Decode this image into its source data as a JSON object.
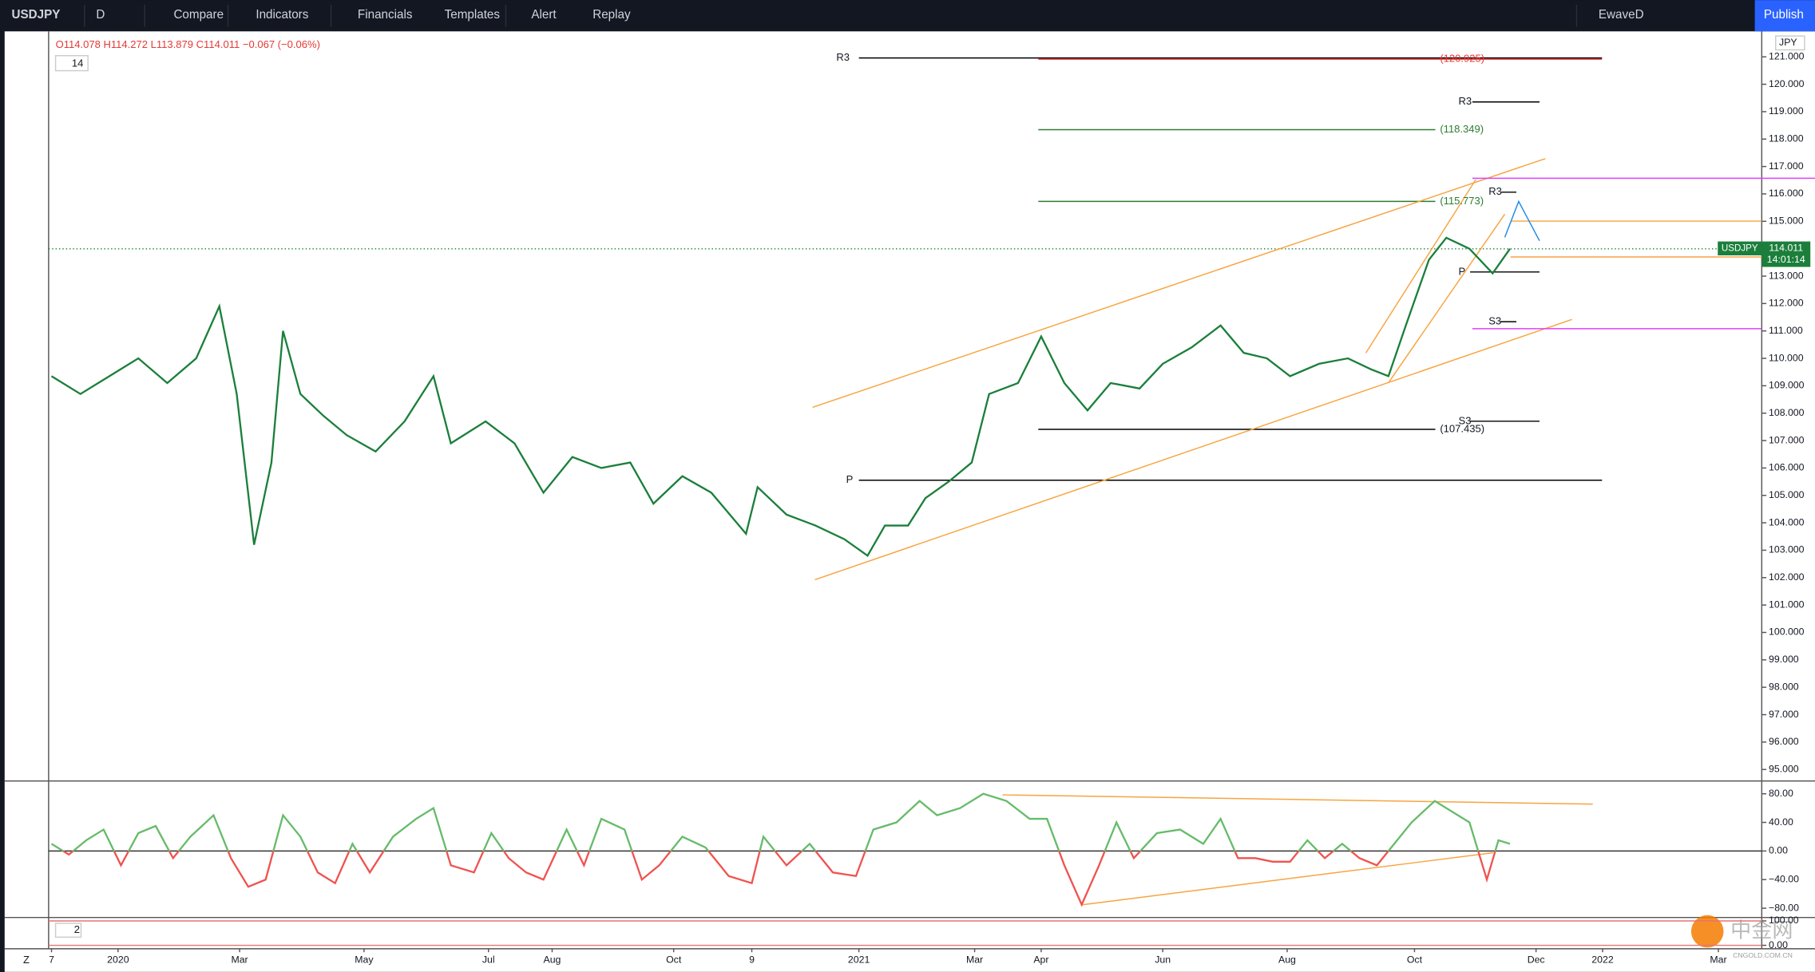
{
  "toolbar": {
    "symbol": "USDJPY",
    "interval": "D",
    "items": [
      "Compare",
      "Indicators",
      "Financials",
      "Templates",
      "Alert",
      "Replay"
    ],
    "layout": "EwaveD",
    "publish": "Publish"
  },
  "legend": {
    "ohlc": "O114.078 H114.272 L113.879 C114.011 −0.067 (−0.06%)",
    "indicator": "14",
    "panel_label": "2",
    "corner": "Z"
  },
  "watermark": {
    "logo": "中金网",
    "site": "CNGOLD.COM.CN"
  },
  "chart_data": [
    {
      "type": "line",
      "currency": "JPY",
      "last": 114.011,
      "countdown": "14:01:14",
      "series": [
        {
          "name": "USDJPY",
          "color": "#1b7f3b",
          "x": [
            1,
            11,
            21,
            31,
            41,
            51,
            59,
            65,
            71,
            77,
            81,
            87,
            95,
            103,
            113,
            123,
            133,
            139,
            151,
            161,
            171,
            181,
            191,
            201,
            209,
            219,
            229,
            241,
            245,
            255,
            265,
            275,
            283,
            289,
            297,
            303,
            311,
            319,
            325,
            335,
            343,
            351,
            359,
            367,
            377,
            385,
            395,
            405,
            413,
            421,
            429,
            439,
            449,
            457,
            463,
            469,
            477,
            483,
            491,
            499,
            505
          ],
          "values": [
            109.35,
            108.7,
            109.35,
            110.0,
            109.1,
            110.0,
            111.9,
            108.7,
            103.2,
            106.2,
            111.0,
            108.7,
            107.9,
            107.2,
            106.6,
            107.7,
            109.35,
            106.9,
            107.7,
            106.9,
            105.1,
            106.4,
            106.0,
            106.2,
            104.7,
            105.7,
            105.1,
            103.6,
            105.3,
            104.3,
            103.9,
            103.4,
            102.8,
            103.9,
            103.9,
            104.9,
            105.5,
            106.2,
            108.7,
            109.1,
            110.8,
            109.1,
            108.1,
            109.1,
            108.9,
            109.8,
            110.4,
            111.2,
            110.2,
            110.0,
            109.35,
            109.8,
            110.0,
            109.6,
            109.35,
            111.2,
            113.6,
            114.4,
            114.0,
            113.1,
            114.0
          ]
        }
      ],
      "xlim": [
        0,
        592
      ],
      "xticks": [
        {
          "value": 1,
          "label": "7"
        },
        {
          "value": 24,
          "label": "2020"
        },
        {
          "value": 66,
          "label": "Mar"
        },
        {
          "value": 109,
          "label": "May"
        },
        {
          "value": 152,
          "label": "Jul"
        },
        {
          "value": 174,
          "label": "Aug"
        },
        {
          "value": 216,
          "label": "Oct"
        },
        {
          "value": 243,
          "label": "9"
        },
        {
          "value": 280,
          "label": "2021"
        },
        {
          "value": 320,
          "label": "Mar"
        },
        {
          "value": 343,
          "label": "Apr"
        },
        {
          "value": 385,
          "label": "Jun"
        },
        {
          "value": 428,
          "label": "Aug"
        },
        {
          "value": 472,
          "label": "Oct"
        },
        {
          "value": 514,
          "label": "Dec"
        },
        {
          "value": 537,
          "label": "2022"
        },
        {
          "value": 577,
          "label": "Mar"
        }
      ],
      "ylim": [
        94.58,
        121.93
      ],
      "yticks": [
        {
          "value": 95,
          "label": "95.000"
        },
        {
          "value": 96,
          "label": "96.000"
        },
        {
          "value": 97,
          "label": "97.000"
        },
        {
          "value": 98,
          "label": "98.000"
        },
        {
          "value": 99,
          "label": "99.000"
        },
        {
          "value": 100,
          "label": "100.000"
        },
        {
          "value": 101,
          "label": "101.000"
        },
        {
          "value": 102,
          "label": "102.000"
        },
        {
          "value": 103,
          "label": "103.000"
        },
        {
          "value": 104,
          "label": "104.000"
        },
        {
          "value": 105,
          "label": "105.000"
        },
        {
          "value": 106,
          "label": "106.000"
        },
        {
          "value": 107,
          "label": "107.000"
        },
        {
          "value": 108,
          "label": "108.000"
        },
        {
          "value": 109,
          "label": "109.000"
        },
        {
          "value": 110,
          "label": "110.000"
        },
        {
          "value": 111,
          "label": "111.000"
        },
        {
          "value": 112,
          "label": "112.000"
        },
        {
          "value": 113,
          "label": "113.000"
        },
        {
          "value": 114,
          "label": "114.000"
        },
        {
          "value": 115,
          "label": "115.000"
        },
        {
          "value": 116,
          "label": "116.000"
        },
        {
          "value": 117,
          "label": "117.000"
        },
        {
          "value": 118,
          "label": "118.000"
        },
        {
          "value": 119,
          "label": "119.000"
        },
        {
          "value": 120,
          "label": "120.000"
        },
        {
          "value": 121,
          "label": "121.000"
        }
      ],
      "annotations": [
        "R3",
        "(120.925)",
        "R3",
        "(118.349)",
        "(115.773)",
        "R3",
        "P",
        "P",
        "S3",
        "S3",
        "(107.435)"
      ]
    },
    {
      "type": "line",
      "color_up": "#66bb6a",
      "color_down": "#ef5350",
      "series": [
        {
          "x": [
            1,
            7,
            13,
            19,
            25,
            31,
            37,
            43,
            49,
            57,
            63,
            69,
            75,
            81,
            87,
            93,
            99,
            105,
            111,
            119,
            127,
            133,
            139,
            147,
            153,
            159,
            165,
            171,
            179,
            185,
            191,
            199,
            205,
            211,
            219,
            227,
            235,
            243,
            247,
            255,
            263,
            271,
            279,
            285,
            293,
            301,
            307,
            315,
            323,
            331,
            339,
            345,
            351,
            357,
            363,
            369,
            375,
            383,
            391,
            399,
            405,
            411,
            417,
            423,
            429,
            435,
            441,
            447,
            453,
            459,
            465,
            471,
            479,
            485,
            491,
            497,
            501,
            505
          ],
          "values": [
            10,
            -5,
            15,
            30,
            -20,
            25,
            35,
            -10,
            20,
            50,
            -10,
            -50,
            -40,
            50,
            20,
            -30,
            -45,
            10,
            -30,
            20,
            45,
            60,
            -20,
            -30,
            25,
            -10,
            -30,
            -40,
            30,
            -20,
            45,
            30,
            -40,
            -20,
            20,
            5,
            -35,
            -45,
            20,
            -20,
            10,
            -30,
            -35,
            30,
            40,
            70,
            50,
            60,
            80,
            70,
            45,
            45,
            -20,
            -75,
            -20,
            40,
            -10,
            25,
            30,
            10,
            45,
            -10,
            -10,
            -15,
            -15,
            15,
            -10,
            10,
            -10,
            -20,
            10,
            40,
            70,
            55,
            40,
            -40,
            15,
            10
          ]
        }
      ],
      "xlim": [
        0,
        592
      ],
      "ylim": [
        -93,
        97.9
      ],
      "yticks": [
        {
          "value": 80,
          "label": "80.00"
        },
        {
          "value": 40,
          "label": "40.00"
        },
        {
          "value": 0,
          "label": "0.00"
        },
        {
          "value": -40,
          "label": "−40.00"
        },
        {
          "value": -80,
          "label": "−80.00"
        }
      ]
    },
    {
      "type": "line",
      "series": [],
      "xlim": [
        0,
        592
      ],
      "ylim": [
        -14,
        114
      ],
      "yticks": [
        {
          "value": 100,
          "label": "100.00"
        },
        {
          "value": 0,
          "label": "0.00"
        }
      ]
    }
  ]
}
